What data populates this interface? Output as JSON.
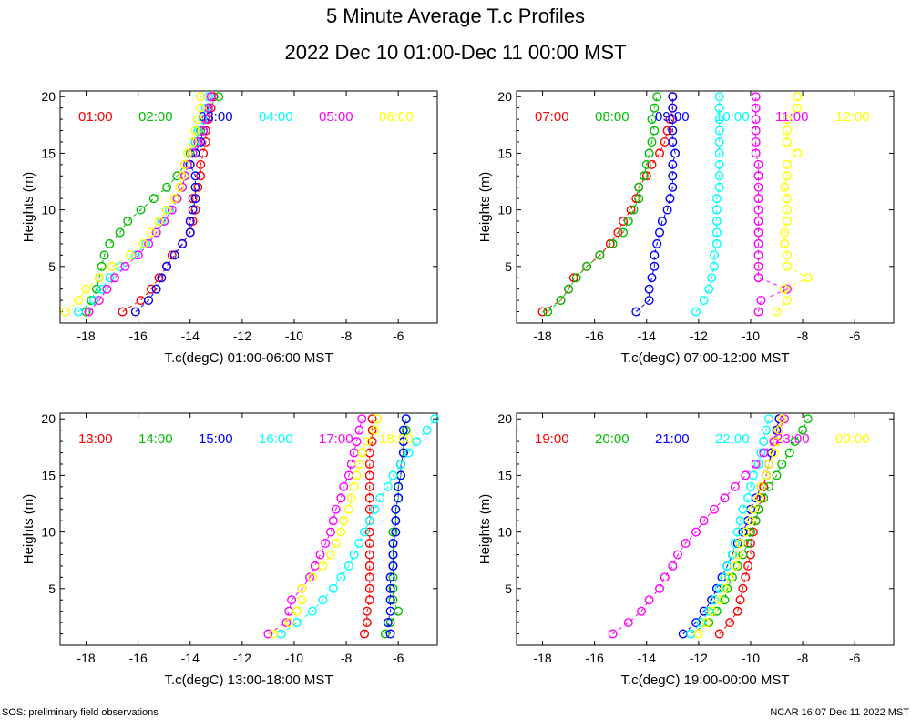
{
  "title": "5 Minute Average T.c Profiles",
  "subtitle": "2022 Dec 10 01:00-Dec 11 00:00 MST",
  "footer_left": "SOS: preliminary field observations",
  "footer_right": "NCAR 16:07 Dec 11 2022 MST",
  "colors": {
    "red": "#ff0000",
    "green": "#00c000",
    "blue": "#0000ff",
    "cyan": "#00ffff",
    "magenta": "#ff00ff",
    "yellow": "#ffff00"
  },
  "chart_data": [
    {
      "type": "scatter",
      "xlabel": "T.c(degC) 01:00-06:00 MST",
      "ylabel": "Heights (m)",
      "xlim": [
        -19,
        -4.5
      ],
      "ylim": [
        0,
        20.5
      ],
      "xticks": [
        -18,
        -16,
        -14,
        -12,
        -10,
        -8,
        -6
      ],
      "yticks": [
        5,
        10,
        15,
        20
      ],
      "heights": [
        1,
        2,
        3,
        4,
        5,
        6,
        7,
        8,
        9,
        10,
        11,
        12,
        13,
        14,
        15,
        16,
        17,
        18,
        19,
        20
      ],
      "series": [
        {
          "name": "01:00",
          "color": "red",
          "values": [
            -16.6,
            -15.9,
            -15.5,
            -15.2,
            -14.9,
            -14.7,
            -14.3,
            -14.0,
            -13.9,
            -13.8,
            -13.9,
            -13.7,
            -13.6,
            -13.6,
            -13.5,
            -13.4,
            -13.4,
            -13.3,
            -13.2,
            -13.1
          ]
        },
        {
          "name": "02:00",
          "color": "green",
          "values": [
            -18.0,
            -17.8,
            -17.6,
            -17.5,
            -17.4,
            -17.3,
            -17.1,
            -16.7,
            -16.4,
            -15.9,
            -15.4,
            -14.9,
            -14.5,
            -14.2,
            -14.0,
            -13.8,
            -13.6,
            -13.4,
            -13.3,
            -12.9
          ]
        },
        {
          "name": "03:00",
          "color": "blue",
          "values": [
            -16.1,
            -15.6,
            -15.3,
            -15.1,
            -14.9,
            -14.6,
            -14.3,
            -14.0,
            -14.0,
            -13.9,
            -13.8,
            -13.8,
            -13.8,
            -14.0,
            -13.8,
            -13.6,
            -13.5,
            -13.4,
            -13.3,
            -13.2
          ]
        },
        {
          "name": "04:00",
          "color": "cyan",
          "values": [
            -18.3,
            -17.7,
            -17.4,
            -17.1,
            -16.7,
            -16.1,
            -15.7,
            -15.3,
            -15.1,
            -14.8,
            -14.5,
            -14.3,
            -14.2,
            -14.1,
            -13.9,
            -13.8,
            -13.7,
            -13.5,
            -13.4,
            -13.3
          ]
        },
        {
          "name": "05:00",
          "color": "magenta",
          "values": [
            -17.9,
            -17.5,
            -17.2,
            -16.9,
            -16.5,
            -16.0,
            -15.6,
            -15.3,
            -15.0,
            -14.7,
            -14.5,
            -14.3,
            -14.2,
            -14.1,
            -13.9,
            -13.7,
            -13.5,
            -13.4,
            -13.3,
            -13.2
          ]
        },
        {
          "name": "06:00",
          "color": "yellow",
          "values": [
            -18.8,
            -18.3,
            -18.0,
            -17.5,
            -17.0,
            -16.3,
            -15.8,
            -15.5,
            -15.2,
            -14.9,
            -14.6,
            -14.4,
            -14.3,
            -14.2,
            -14.1,
            -13.9,
            -13.8,
            -13.7,
            -13.6,
            -13.6
          ]
        }
      ]
    },
    {
      "type": "scatter",
      "xlabel": "T.c(degC) 07:00-12:00 MST",
      "ylabel": "Heights (m)",
      "xlim": [
        -19,
        -4.5
      ],
      "ylim": [
        0,
        20.5
      ],
      "xticks": [
        -18,
        -16,
        -14,
        -12,
        -10,
        -8,
        -6
      ],
      "yticks": [
        5,
        10,
        15,
        20
      ],
      "heights": [
        1,
        2,
        3,
        4,
        5,
        6,
        7,
        8,
        9,
        10,
        11,
        12,
        13,
        14,
        15,
        16,
        17,
        18,
        19,
        20
      ],
      "series": [
        {
          "name": "07:00",
          "color": "red",
          "values": [
            -18.0,
            -17.3,
            -17.0,
            -16.8,
            -16.3,
            -15.8,
            -15.4,
            -15.1,
            -14.9,
            -14.6,
            -14.4,
            -14.3,
            -14.0,
            -13.8,
            -13.5,
            -13.3,
            -13.2,
            -13.1,
            -13.0,
            -13.0
          ]
        },
        {
          "name": "08:00",
          "color": "green",
          "values": [
            -17.8,
            -17.3,
            -17.0,
            -16.7,
            -16.3,
            -15.8,
            -15.3,
            -14.9,
            -14.7,
            -14.5,
            -14.3,
            -14.3,
            -14.1,
            -14.0,
            -13.9,
            -13.8,
            -13.7,
            -13.8,
            -13.7,
            -13.6
          ]
        },
        {
          "name": "09:00",
          "color": "blue",
          "values": [
            -14.4,
            -13.9,
            -13.9,
            -13.8,
            -13.7,
            -13.7,
            -13.6,
            -13.5,
            -13.4,
            -13.2,
            -13.1,
            -13.0,
            -13.0,
            -13.0,
            -12.9,
            -13.0,
            -13.0,
            -13.0,
            -13.0,
            -13.0
          ]
        },
        {
          "name": "10:00",
          "color": "cyan",
          "values": [
            -12.1,
            -11.8,
            -11.6,
            -11.5,
            -11.4,
            -11.4,
            -11.3,
            -11.3,
            -11.3,
            -11.3,
            -11.3,
            -11.2,
            -11.2,
            -11.2,
            -11.2,
            -11.2,
            -11.2,
            -11.2,
            -11.2,
            -11.2
          ]
        },
        {
          "name": "11:00",
          "color": "magenta",
          "values": [
            -9.7,
            -9.6,
            -8.6,
            -9.7,
            -9.7,
            -9.7,
            -9.7,
            -9.7,
            -9.7,
            -9.7,
            -9.7,
            -9.7,
            -9.7,
            -9.7,
            -9.8,
            -9.8,
            -9.8,
            -9.8,
            -9.8,
            -9.8
          ]
        },
        {
          "name": "12:00",
          "color": "yellow",
          "values": [
            -9.0,
            -8.6,
            -8.7,
            -7.8,
            -8.6,
            -8.6,
            -8.7,
            -8.7,
            -8.6,
            -8.6,
            -8.6,
            -8.7,
            -8.6,
            -8.6,
            -8.2,
            -8.6,
            -8.6,
            -8.6,
            -8.2,
            -8.2
          ]
        }
      ]
    },
    {
      "type": "scatter",
      "xlabel": "T.c(degC) 13:00-18:00 MST",
      "ylabel": "Heights (m)",
      "xlim": [
        -19,
        -4.5
      ],
      "ylim": [
        0,
        20.5
      ],
      "xticks": [
        -18,
        -16,
        -14,
        -12,
        -10,
        -8,
        -6
      ],
      "yticks": [
        5,
        10,
        15,
        20
      ],
      "heights": [
        1,
        2,
        3,
        4,
        5,
        6,
        7,
        8,
        9,
        10,
        11,
        12,
        13,
        14,
        15,
        16,
        17,
        18,
        19,
        20
      ],
      "series": [
        {
          "name": "13:00",
          "color": "red",
          "values": [
            -7.3,
            -7.2,
            -7.2,
            -7.1,
            -7.1,
            -7.1,
            -7.1,
            -7.1,
            -7.1,
            -7.1,
            -7.1,
            -7.1,
            -7.1,
            -7.1,
            -7.1,
            -7.1,
            -7.1,
            -7.0,
            -7.0,
            -7.0
          ]
        },
        {
          "name": "14:00",
          "color": "green",
          "values": [
            -6.5,
            -6.3,
            -6.0,
            -6.2,
            -6.2,
            -6.2,
            -6.2,
            -6.2,
            -6.2,
            -6.2,
            -6.1,
            -6.1,
            -6.0,
            -6.0,
            -5.9,
            -5.9,
            -5.8,
            -5.8,
            -5.7,
            -5.7
          ]
        },
        {
          "name": "15:00",
          "color": "blue",
          "values": [
            -6.3,
            -6.4,
            -6.3,
            -6.3,
            -6.3,
            -6.3,
            -6.2,
            -6.2,
            -6.2,
            -6.1,
            -6.1,
            -6.1,
            -6.0,
            -6.0,
            -5.9,
            -5.9,
            -5.8,
            -5.8,
            -5.8,
            -5.7
          ]
        },
        {
          "name": "16:00",
          "color": "cyan",
          "values": [
            -10.5,
            -9.9,
            -9.3,
            -8.9,
            -8.5,
            -8.2,
            -7.9,
            -7.7,
            -7.5,
            -7.3,
            -7.1,
            -6.9,
            -6.7,
            -6.4,
            -6.2,
            -5.9,
            -5.6,
            -5.3,
            -4.9,
            -4.6
          ]
        },
        {
          "name": "17:00",
          "color": "magenta",
          "values": [
            -11.0,
            -10.3,
            -10.2,
            -10.1,
            -9.7,
            -9.4,
            -9.2,
            -9.0,
            -8.8,
            -8.6,
            -8.5,
            -8.4,
            -8.2,
            -8.1,
            -7.9,
            -7.8,
            -7.7,
            -7.6,
            -7.5,
            -7.4
          ]
        },
        {
          "name": "18:00",
          "color": "yellow",
          "values": [
            -10.8,
            -10.2,
            -9.9,
            -9.7,
            -9.7,
            -9.3,
            -8.9,
            -8.6,
            -8.4,
            -8.2,
            -8.1,
            -7.9,
            -7.8,
            -7.7,
            -7.6,
            -7.5,
            -7.4,
            -7.2,
            -6.9,
            -6.8
          ]
        }
      ]
    },
    {
      "type": "scatter",
      "xlabel": "T.c(degC) 19:00-00:00 MST",
      "ylabel": "Heights (m)",
      "xlim": [
        -19,
        -4.5
      ],
      "ylim": [
        0,
        20.5
      ],
      "xticks": [
        -18,
        -16,
        -14,
        -12,
        -10,
        -8,
        -6
      ],
      "yticks": [
        5,
        10,
        15,
        20
      ],
      "heights": [
        1,
        2,
        3,
        4,
        5,
        6,
        7,
        8,
        9,
        10,
        11,
        12,
        13,
        14,
        15,
        16,
        17,
        18,
        19,
        20
      ],
      "series": [
        {
          "name": "19:00",
          "color": "red",
          "values": [
            -11.2,
            -10.8,
            -10.5,
            -10.4,
            -10.3,
            -10.2,
            -10.1,
            -10.0,
            -10.0,
            -9.9,
            -9.8,
            -9.7,
            -9.6,
            -9.5,
            -9.4,
            -9.3,
            -9.2,
            -9.1,
            -9.0,
            -8.9
          ]
        },
        {
          "name": "20:00",
          "color": "green",
          "values": [
            -12.3,
            -11.6,
            -11.3,
            -11.0,
            -10.9,
            -10.7,
            -10.5,
            -10.3,
            -10.1,
            -10.0,
            -9.8,
            -9.7,
            -9.5,
            -9.3,
            -9.0,
            -8.8,
            -8.5,
            -8.3,
            -8.0,
            -7.8
          ]
        },
        {
          "name": "21:00",
          "color": "blue",
          "values": [
            -12.6,
            -12.1,
            -11.8,
            -11.5,
            -11.3,
            -11.1,
            -10.9,
            -10.7,
            -10.5,
            -10.3,
            -10.1,
            -10.0,
            -9.8,
            -9.6,
            -9.4,
            -9.3,
            -9.2,
            -9.1,
            -9.0,
            -8.9
          ]
        },
        {
          "name": "22:00",
          "color": "cyan",
          "values": [
            -12.3,
            -11.9,
            -11.6,
            -11.4,
            -11.2,
            -11.0,
            -10.9,
            -10.7,
            -10.6,
            -10.5,
            -10.4,
            -10.3,
            -10.1,
            -10.0,
            -9.9,
            -9.7,
            -9.6,
            -9.5,
            -9.4,
            -9.3
          ]
        },
        {
          "name": "23:00",
          "color": "magenta",
          "values": [
            -15.3,
            -14.7,
            -14.2,
            -13.9,
            -13.5,
            -13.3,
            -13.0,
            -12.8,
            -12.5,
            -12.1,
            -11.8,
            -11.4,
            -11.0,
            -10.6,
            -10.2,
            -9.8,
            -9.5,
            -9.1,
            -8.9,
            -8.7
          ]
        },
        {
          "name": "00:00",
          "color": "yellow",
          "values": [
            -12.0,
            -11.7,
            -11.5,
            -11.2,
            -11.0,
            -10.8,
            -10.6,
            -10.5,
            -10.4,
            -10.2,
            -10.0,
            -9.9,
            -9.7,
            -9.6,
            -9.4,
            -9.3,
            -9.1,
            -9.0,
            -8.9,
            -8.8
          ]
        }
      ]
    }
  ]
}
